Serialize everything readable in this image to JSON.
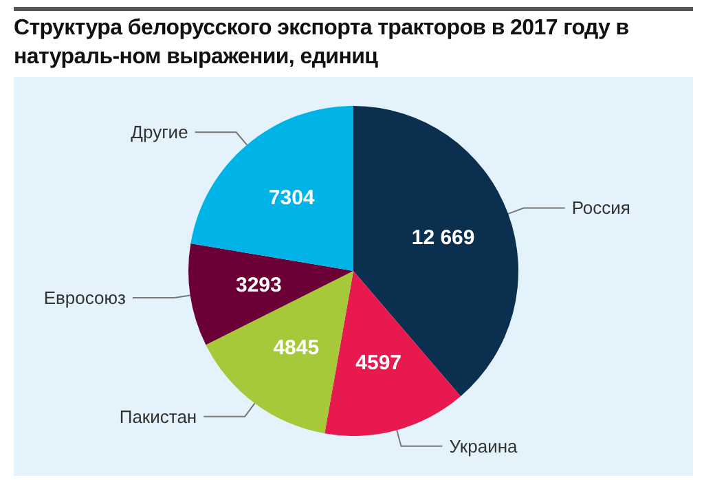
{
  "chart_data": {
    "type": "pie",
    "title": "Структура белорусского экспорта тракторов в 2017 году в натураль-ном выражении, единиц",
    "categories": [
      "Россия",
      "Украина",
      "Пакистан",
      "Евросоюз",
      "Другие"
    ],
    "values": [
      12669,
      4597,
      4845,
      3293,
      7304
    ],
    "value_labels": [
      "12 669",
      "4597",
      "4845",
      "3293",
      "7304"
    ],
    "colors": [
      "#0b2f4f",
      "#e8194f",
      "#a6c93a",
      "#6a0035",
      "#00b3e6"
    ]
  }
}
